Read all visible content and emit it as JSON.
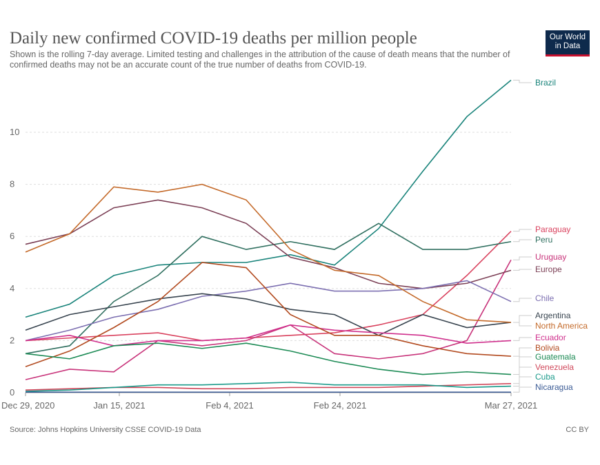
{
  "title": "Daily new confirmed COVID-19 deaths per million people",
  "subtitle": "Shown is the rolling 7-day average. Limited testing and challenges in the attribution of the cause of death means that the number of confirmed deaths may not be an accurate count of the true number of deaths from COVID-19.",
  "logo": "Our World in Data",
  "source": "Source: Johns Hopkins University CSSE COVID-19 Data",
  "license": "CC BY",
  "chart_data": {
    "type": "line",
    "title": "Daily new confirmed COVID-19 deaths per million people",
    "xlabel": "",
    "ylabel": "",
    "ylim": [
      0,
      12
    ],
    "yticks": [
      0,
      2,
      4,
      6,
      8,
      10
    ],
    "xticks": [
      {
        "day": 0,
        "label": "Dec 29, 2020"
      },
      {
        "day": 17,
        "label": "Jan 15, 2021"
      },
      {
        "day": 37,
        "label": "Feb 4, 2021"
      },
      {
        "day": 57,
        "label": "Feb 24, 2021"
      },
      {
        "day": 88,
        "label": "Mar 27, 2021"
      }
    ],
    "xlim": [
      0,
      88
    ],
    "x_days": [
      0,
      8,
      16,
      24,
      32,
      40,
      48,
      56,
      64,
      72,
      80,
      88
    ],
    "grid": true,
    "legend": "right (end labels)",
    "series": [
      {
        "name": "Brazil",
        "color": "#18837a",
        "values": [
          2.9,
          3.4,
          4.5,
          4.9,
          5.0,
          5.0,
          5.3,
          4.9,
          6.3,
          8.5,
          10.6,
          12.0
        ]
      },
      {
        "name": "Paraguay",
        "color": "#d9425e",
        "values": [
          2.0,
          2.1,
          2.2,
          2.3,
          2.0,
          2.1,
          2.2,
          2.3,
          2.6,
          3.0,
          4.5,
          6.2
        ]
      },
      {
        "name": "Peru",
        "color": "#2f6f5f",
        "values": [
          1.5,
          1.8,
          3.5,
          4.5,
          6.0,
          5.5,
          5.8,
          5.5,
          6.5,
          5.5,
          5.5,
          5.8
        ]
      },
      {
        "name": "Uruguay",
        "color": "#c8337a",
        "values": [
          0.5,
          0.9,
          0.8,
          2.0,
          1.8,
          2.0,
          2.6,
          1.5,
          1.3,
          1.5,
          2.0,
          5.1
        ]
      },
      {
        "name": "Europe",
        "color": "#7b3f55",
        "values": [
          5.7,
          6.1,
          7.1,
          7.4,
          7.1,
          6.5,
          5.2,
          4.8,
          4.2,
          4.0,
          4.2,
          4.7
        ]
      },
      {
        "name": "Chile",
        "color": "#7b6eb0",
        "values": [
          2.0,
          2.4,
          2.9,
          3.2,
          3.7,
          3.9,
          4.2,
          3.9,
          3.9,
          4.0,
          4.3,
          3.5
        ]
      },
      {
        "name": "Argentina",
        "color": "#38444f",
        "values": [
          2.4,
          3.0,
          3.3,
          3.6,
          3.8,
          3.6,
          3.2,
          3.0,
          2.2,
          3.0,
          2.5,
          2.7
        ]
      },
      {
        "name": "North America",
        "color": "#c46a2a",
        "values": [
          5.4,
          6.1,
          7.9,
          7.7,
          8.0,
          7.4,
          5.5,
          4.7,
          4.5,
          3.5,
          2.8,
          2.7
        ]
      },
      {
        "name": "Ecuador",
        "color": "#cf2f8c",
        "values": [
          2.0,
          2.2,
          1.8,
          2.0,
          2.0,
          2.1,
          2.6,
          2.4,
          2.3,
          2.2,
          1.9,
          2.0
        ]
      },
      {
        "name": "Bolivia",
        "color": "#b24a1f",
        "values": [
          1.0,
          1.6,
          2.5,
          3.5,
          5.0,
          4.8,
          3.0,
          2.2,
          2.2,
          1.8,
          1.5,
          1.4
        ]
      },
      {
        "name": "Guatemala",
        "color": "#1b8a54",
        "values": [
          1.5,
          1.3,
          1.8,
          1.9,
          1.7,
          1.9,
          1.6,
          1.2,
          0.9,
          0.7,
          0.8,
          0.7
        ]
      },
      {
        "name": "Venezuela",
        "color": "#d0475a",
        "values": [
          0.1,
          0.15,
          0.2,
          0.2,
          0.15,
          0.15,
          0.2,
          0.2,
          0.2,
          0.25,
          0.3,
          0.35
        ]
      },
      {
        "name": "Cuba",
        "color": "#1a9a8a",
        "values": [
          0.05,
          0.1,
          0.2,
          0.3,
          0.3,
          0.35,
          0.4,
          0.3,
          0.3,
          0.3,
          0.2,
          0.25
        ]
      },
      {
        "name": "Nicaragua",
        "color": "#3a5a94",
        "values": [
          0.02,
          0.02,
          0.02,
          0.02,
          0.02,
          0.02,
          0.02,
          0.02,
          0.02,
          0.02,
          0.02,
          0.02
        ]
      }
    ]
  }
}
